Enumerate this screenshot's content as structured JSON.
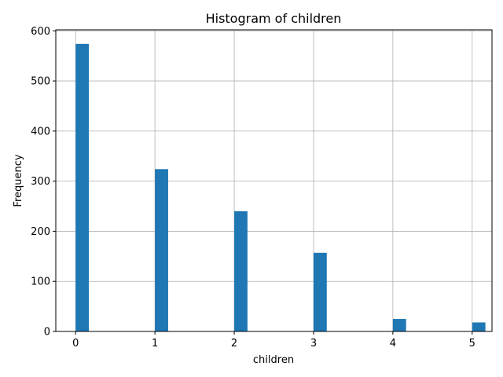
{
  "chart_data": {
    "type": "bar",
    "title": "Histogram of children",
    "xlabel": "children",
    "ylabel": "Frequency",
    "x": [
      0,
      1,
      2,
      3,
      4,
      5
    ],
    "values": [
      574,
      324,
      240,
      157,
      25,
      18
    ],
    "bin_width": 0.1667,
    "xlim": [
      -0.25,
      5.25
    ],
    "ylim": [
      0,
      602
    ],
    "xticks": [
      0,
      1,
      2,
      3,
      4,
      5
    ],
    "yticks": [
      0,
      100,
      200,
      300,
      400,
      500,
      600
    ],
    "grid": true,
    "bar_color": "#1f77b4",
    "grid_color": "#b0b0b0"
  }
}
